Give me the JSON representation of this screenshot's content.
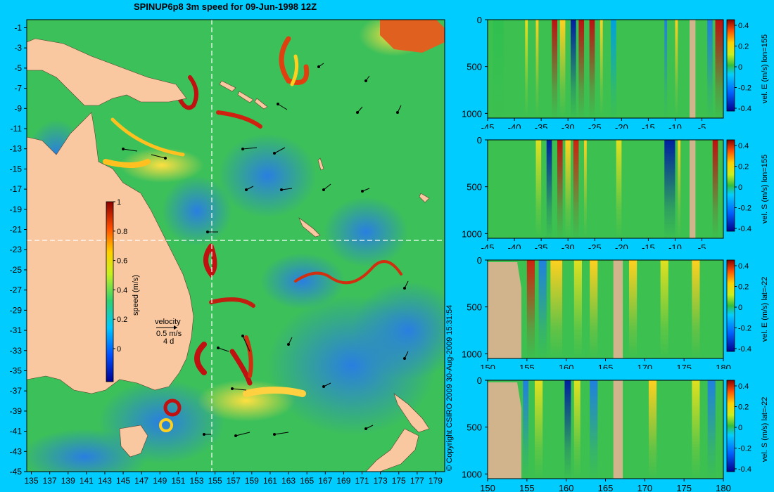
{
  "title": "SPINUP6p8 3m speed for 09-Jun-1998 12Z",
  "copyright": "© Copyright CSIRO 2009   30-Aug-2009 15:31:54",
  "map": {
    "lon_ticks": [
      "135",
      "137",
      "139",
      "141",
      "143",
      "145",
      "147",
      "149",
      "151",
      "153",
      "155",
      "157",
      "159",
      "161",
      "163",
      "165",
      "167",
      "169",
      "171",
      "173",
      "175",
      "177",
      "179"
    ],
    "lat_ticks": [
      "-1",
      "-3",
      "-5",
      "-7",
      "-9",
      "-11",
      "-13",
      "-15",
      "-17",
      "-19",
      "-21",
      "-23",
      "-25",
      "-27",
      "-29",
      "-31",
      "-33",
      "-35",
      "-37",
      "-39",
      "-41",
      "-43",
      "-45"
    ],
    "section_lon": 155,
    "section_lat": -22,
    "colorbar": {
      "label": "speed (m/s)",
      "ticks": [
        "1",
        "0.8",
        "0.6",
        "0.4",
        "0.2",
        "0"
      ],
      "min": 0,
      "max": 1
    },
    "velocity_key": {
      "label": "velocity",
      "value": "0.5 m/s",
      "duration": "4 d"
    },
    "colors": {
      "land": "#f9c8a0",
      "ocean_bg": "#22aa44",
      "frame": "#00ccff"
    }
  },
  "panels": [
    {
      "colorbar_label": "vel. E (m/s) lon=155",
      "x_ticks": [
        "-45",
        "-40",
        "-35",
        "-30",
        "-25",
        "-20",
        "-15",
        "-10",
        "-5"
      ],
      "x_range": [
        -45,
        -1
      ],
      "y_ticks": [
        "0",
        "500",
        "1000"
      ],
      "cb_ticks": [
        "0.4",
        "0.2",
        "0",
        "-0.2",
        "-0.4"
      ]
    },
    {
      "colorbar_label": "vel. S (m/s) lon=155",
      "x_ticks": [
        "-45",
        "-40",
        "-35",
        "-30",
        "-25",
        "-20",
        "-15",
        "-10",
        "-5"
      ],
      "x_range": [
        -45,
        -1
      ],
      "y_ticks": [
        "0",
        "500",
        "1000"
      ],
      "cb_ticks": [
        "0.4",
        "0.2",
        "0",
        "-0.2",
        "-0.4"
      ]
    },
    {
      "colorbar_label": "vel. E (m/s) lat=-22",
      "x_ticks": [
        "150",
        "155",
        "160",
        "165",
        "170",
        "175",
        "180"
      ],
      "x_range": [
        150,
        180
      ],
      "y_ticks": [
        "0",
        "500",
        "1000"
      ],
      "cb_ticks": [
        "0.4",
        "0.2",
        "0",
        "-0.2",
        "-0.4"
      ]
    },
    {
      "colorbar_label": "vel. S (m/s) lat=-22",
      "x_ticks": [
        "150",
        "155",
        "160",
        "165",
        "170",
        "175",
        "180"
      ],
      "x_range": [
        150,
        180
      ],
      "y_ticks": [
        "0",
        "500",
        "1000"
      ],
      "cb_ticks": [
        "0.4",
        "0.2",
        "0",
        "-0.2",
        "-0.4"
      ]
    }
  ]
}
